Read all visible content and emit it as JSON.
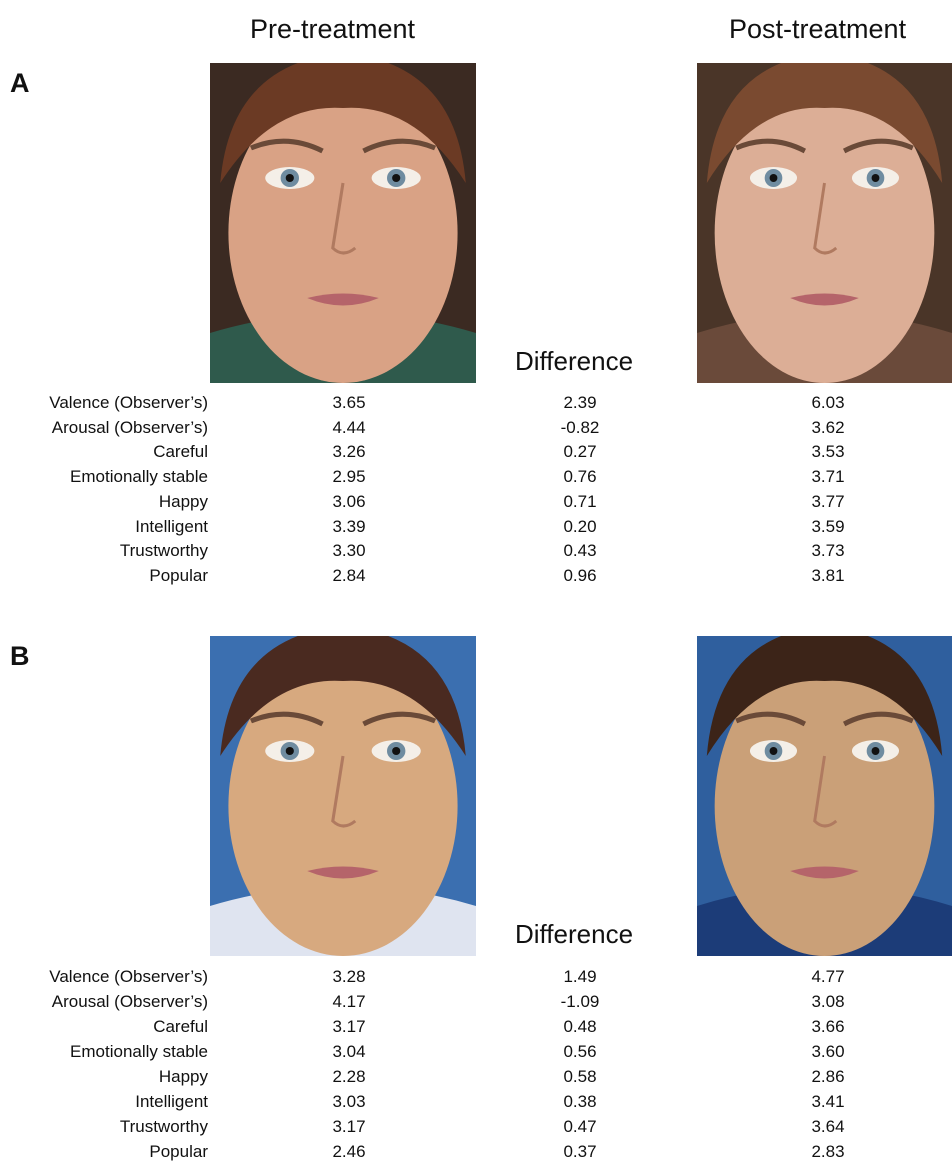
{
  "header": {
    "pre": "Pre-treatment",
    "post": "Post-treatment"
  },
  "panels": [
    {
      "label": "A",
      "difference": "Difference",
      "rows": [
        [
          "Valence (Observer’s)",
          "3.65",
          "2.39",
          "6.03"
        ],
        [
          "Arousal (Observer’s)",
          "4.44",
          "-0.82",
          "3.62"
        ],
        [
          "Careful",
          "3.26",
          "0.27",
          "3.53"
        ],
        [
          "Emotionally stable",
          "2.95",
          "0.76",
          "3.71"
        ],
        [
          "Happy",
          "3.06",
          "0.71",
          "3.77"
        ],
        [
          "Intelligent",
          "3.39",
          "0.20",
          "3.59"
        ],
        [
          "Trustworthy",
          "3.30",
          "0.43",
          "3.73"
        ],
        [
          "Popular",
          "2.84",
          "0.96",
          "3.81"
        ]
      ]
    },
    {
      "label": "B",
      "difference": "Difference",
      "rows": [
        [
          "Valence (Observer’s)",
          "3.28",
          "1.49",
          "4.77"
        ],
        [
          "Arousal (Observer’s)",
          "4.17",
          "-1.09",
          "3.08"
        ],
        [
          "Careful",
          "3.17",
          "0.48",
          "3.66"
        ],
        [
          "Emotionally stable",
          "3.04",
          "0.56",
          "3.60"
        ],
        [
          "Happy",
          "2.28",
          "0.58",
          "2.86"
        ],
        [
          "Intelligent",
          "3.03",
          "0.38",
          "3.41"
        ],
        [
          "Trustworthy",
          "3.17",
          "0.47",
          "3.64"
        ],
        [
          "Popular",
          "2.46",
          "0.37",
          "2.83"
        ]
      ]
    }
  ]
}
